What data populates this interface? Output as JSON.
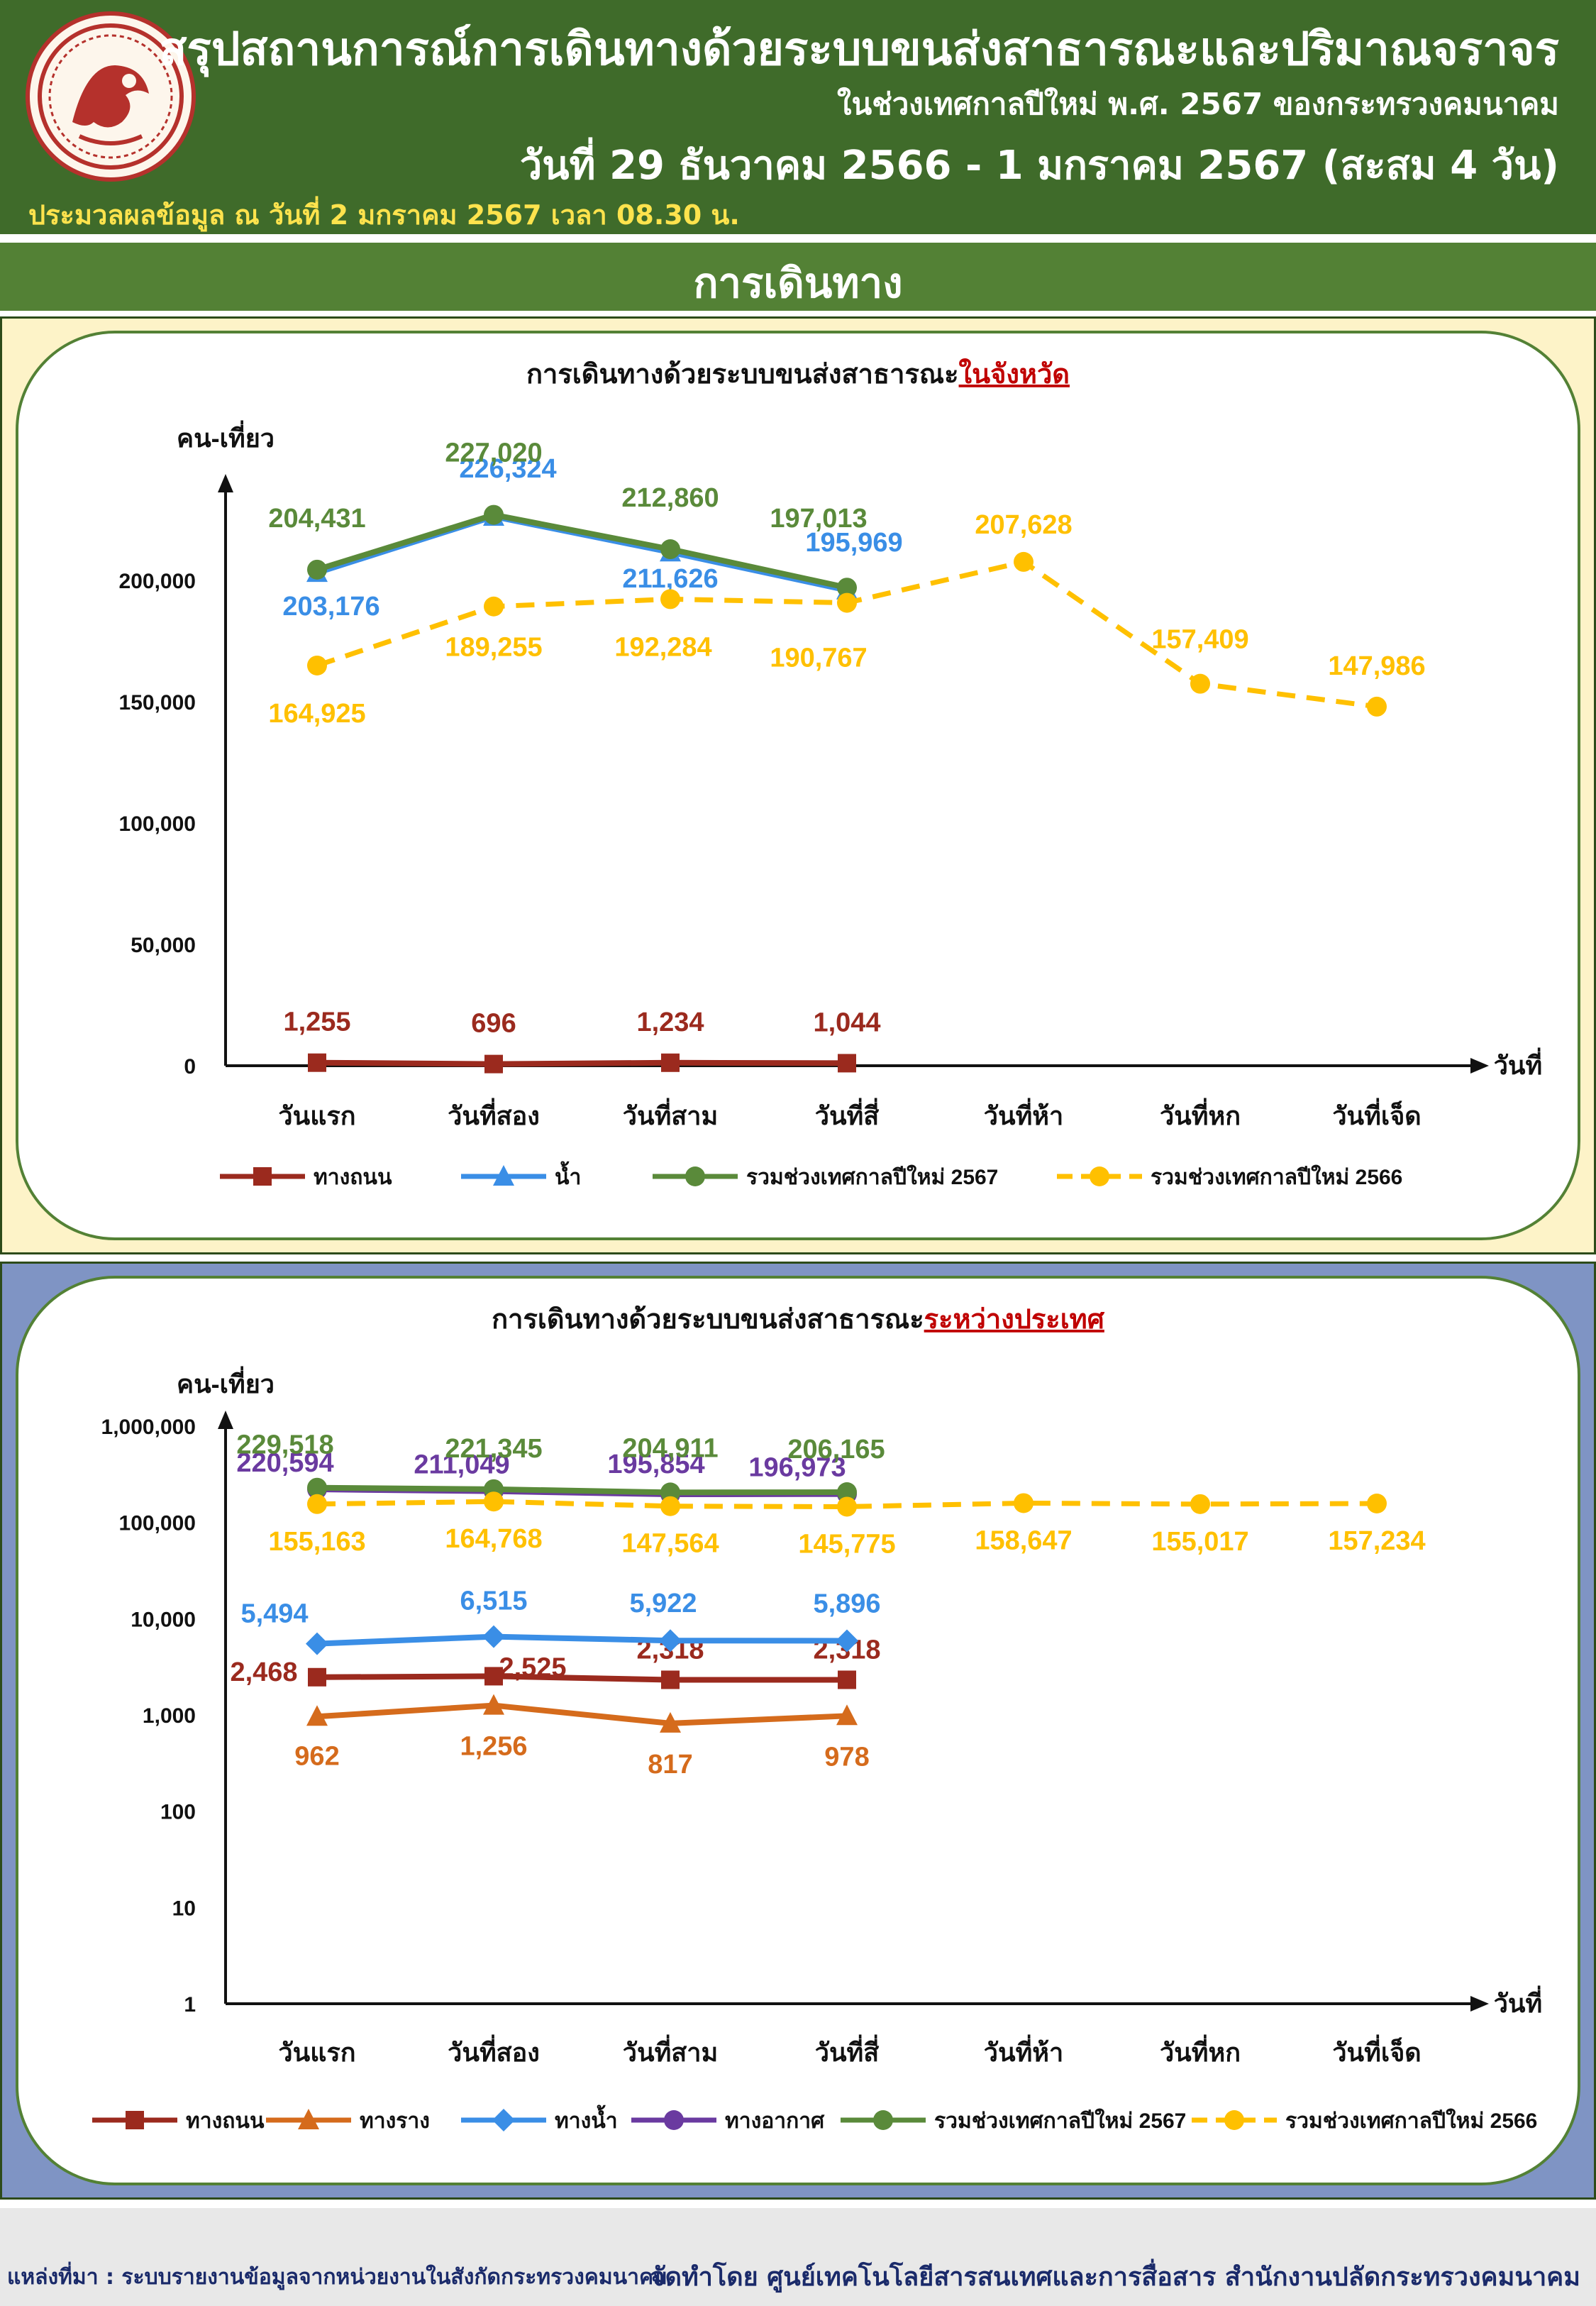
{
  "header": {
    "title": "สรุปสถานการณ์การเดินทางด้วยระบบขนส่งสาธารณะและปริมาณจราจร",
    "subtitle": "ในช่วงเทศกาลปีใหม่ พ.ศ. 2567 ของกระทรวงคมนาคม",
    "date_range": "วันที่ 29 ธันวาคม 2566 - 1 มกราคม 2567 (สะสม 4 วัน)",
    "processed_note": "ประมวลผลข้อมูล ณ วันที่ 2 มกราคม 2567 เวลา 08.30 น.",
    "logo": "ministry-of-transport-seal"
  },
  "section": {
    "title": "การเดินทาง"
  },
  "colors": {
    "header_bg": "#3f6b2a",
    "section_bg": "#538135",
    "panel1_bg": "#fdf3c8",
    "panel2_bg": "#7f94c4",
    "highlight_red": "#c00000"
  },
  "chart_data": [
    {
      "type": "line",
      "title_prefix": "การเดินทางด้วยระบบขนส่งสาธารณะ",
      "title_highlight": "ในจังหวัด",
      "ylabel": "คน-เที่ยว",
      "xlabel": "วันที่",
      "scale": "linear",
      "ylim": [
        0,
        230000
      ],
      "yticks": [
        0,
        50000,
        100000,
        150000,
        200000
      ],
      "ytick_labels": [
        "0",
        "50,000",
        "100,000",
        "150,000",
        "200,000"
      ],
      "categories": [
        "วันแรก",
        "วันที่สอง",
        "วันที่สาม",
        "วันที่สี่",
        "วันที่ห้า",
        "วันที่หก",
        "วันที่เจ็ด"
      ],
      "series": [
        {
          "name": "ทางถนน",
          "color": "#9b2a1e",
          "marker": "square",
          "dash": false,
          "values": [
            1255,
            696,
            1234,
            1044,
            null,
            null,
            null
          ],
          "labels": [
            "1,255",
            "696",
            "1,234",
            "1,044",
            "",
            "",
            ""
          ]
        },
        {
          "name": "น้ำ",
          "color": "#3a8ee6",
          "marker": "triangle",
          "dash": false,
          "values": [
            203176,
            226324,
            211626,
            195969,
            null,
            null,
            null
          ],
          "labels": [
            "203,176",
            "226,324",
            "211,626",
            "195,969",
            "",
            "",
            ""
          ]
        },
        {
          "name": "รวมช่วงเทศกาลปีใหม่ 2567",
          "color": "#5a8a3a",
          "marker": "circle",
          "dash": false,
          "values": [
            204431,
            227020,
            212860,
            197013,
            null,
            null,
            null
          ],
          "labels": [
            "204,431",
            "227,020",
            "212,860",
            "197,013",
            "",
            "",
            ""
          ]
        },
        {
          "name": "รวมช่วงเทศกาลปีใหม่ 2566",
          "color": "#ffc000",
          "marker": "circle",
          "dash": true,
          "values": [
            164925,
            189255,
            192284,
            190767,
            207628,
            157409,
            147986
          ],
          "labels": [
            "164,925",
            "189,255",
            "192,284",
            "190,767",
            "207,628",
            "157,409",
            "147,986"
          ]
        }
      ],
      "legend": "bottom"
    },
    {
      "type": "line",
      "title_prefix": "การเดินทางด้วยระบบขนส่งสาธารณะ",
      "title_highlight": "ระหว่างประเทศ",
      "ylabel": "คน-เที่ยว",
      "xlabel": "วันที่",
      "scale": "log",
      "ylim": [
        1,
        1000000
      ],
      "yticks": [
        1,
        10,
        100,
        1000,
        10000,
        100000,
        1000000
      ],
      "ytick_labels": [
        "1",
        "10",
        "100",
        "1,000",
        "10,000",
        "100,000",
        "1,000,000"
      ],
      "categories": [
        "วันแรก",
        "วันที่สอง",
        "วันที่สาม",
        "วันที่สี่",
        "วันที่ห้า",
        "วันที่หก",
        "วันที่เจ็ด"
      ],
      "series": [
        {
          "name": "ทางถนน",
          "color": "#9b2a1e",
          "marker": "square",
          "dash": false,
          "values": [
            2468,
            2525,
            2318,
            2318,
            null,
            null,
            null
          ],
          "labels": [
            "2,468",
            "2,525",
            "2,318",
            "2,318",
            "",
            "",
            ""
          ]
        },
        {
          "name": "ทางราง",
          "color": "#d56b1c",
          "marker": "triangle",
          "dash": false,
          "values": [
            962,
            1256,
            817,
            978,
            null,
            null,
            null
          ],
          "labels": [
            "962",
            "1,256",
            "817",
            "978",
            "",
            "",
            ""
          ]
        },
        {
          "name": "ทางน้ำ",
          "color": "#3a8ee6",
          "marker": "diamond",
          "dash": false,
          "values": [
            5494,
            6515,
            5922,
            5896,
            null,
            null,
            null
          ],
          "labels": [
            "5,494",
            "6,515",
            "5,922",
            "5,896",
            "",
            "",
            ""
          ]
        },
        {
          "name": "ทางอากาศ",
          "color": "#6a3aa0",
          "marker": "circle",
          "dash": false,
          "values": [
            220594,
            211049,
            195854,
            196973,
            null,
            null,
            null
          ],
          "labels": [
            "220,594",
            "211,049",
            "195,854",
            "196,973",
            "",
            "",
            ""
          ]
        },
        {
          "name": "รวมช่วงเทศกาลปีใหม่ 2567",
          "color": "#5a8a3a",
          "marker": "circle",
          "dash": false,
          "values": [
            229518,
            221345,
            204911,
            206165,
            null,
            null,
            null
          ],
          "labels": [
            "229,518",
            "221,345",
            "204,911",
            "206,165",
            "",
            "",
            ""
          ]
        },
        {
          "name": "รวมช่วงเทศกาลปีใหม่ 2566",
          "color": "#ffc000",
          "marker": "circle",
          "dash": true,
          "values": [
            155163,
            164768,
            147564,
            145775,
            158647,
            155017,
            157234
          ],
          "labels": [
            "155,163",
            "164,768",
            "147,564",
            "145,775",
            "158,647",
            "155,017",
            "157,234"
          ]
        }
      ],
      "legend": "bottom"
    }
  ],
  "footer": {
    "source": "แหล่งที่มา : ระบบรายงานข้อมูลจากหน่วยงานในสังกัดกระทรวงคมนาคม",
    "prepared_by": "จัดทำโดย ศูนย์เทคโนโลยีสารสนเทศและการสื่อสาร สำนักงานปลัดกระทรวงคมนาคม"
  }
}
